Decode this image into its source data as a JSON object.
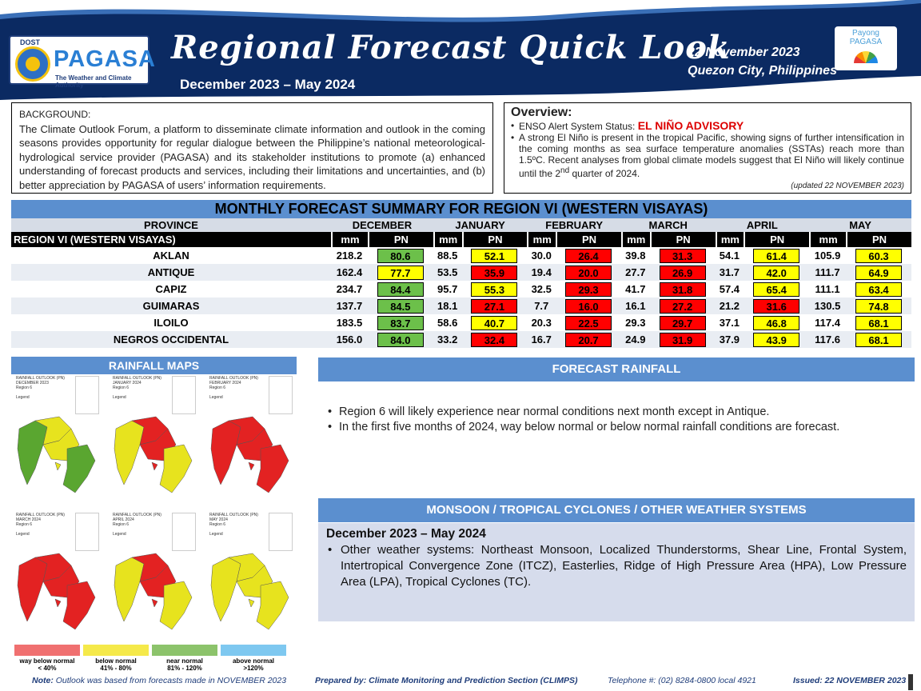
{
  "header": {
    "agency_dost": "DOST",
    "agency_name": "PAGASA",
    "agency_tagline": "The Weather and Climate Authority",
    "title": "Regional Forecast Quick Look",
    "period": "December 2023 – May  2024",
    "date": "22 November 2023",
    "location": "Quezon City, Philippines",
    "payong_line1": "Payong",
    "payong_line2": "PAGASA"
  },
  "background": {
    "heading": "BACKGROUND:",
    "text": "The Climate Outlook Forum, a platform to disseminate climate information and outlook in the coming seasons provides opportunity for regular dialogue between the Philippine’s national meteorological-hydrological service provider (PAGASA) and its stakeholder institutions to promote (a) enhanced understanding of forecast products and services, including their limitations and uncertainties, and (b) better appreciation by PAGASA of users’ information requirements."
  },
  "overview": {
    "heading": "Overview:",
    "enso_label": "ENSO Alert  System Status: ",
    "enso_status": "EL NIÑO ADVISORY",
    "text_before_sup": "A strong El Niño is present in the tropical Pacific, showing signs of further intensification in the coming months as sea surface temperature anomalies (SSTAs) reach more than 1.5ºC. Recent analyses from global climate models suggest that El Niño will likely continue  until the 2",
    "sup": "nd",
    "text_after_sup": " quarter of 2024.",
    "updated": "(updated 22 NOVEMBER  2023)"
  },
  "table": {
    "title": "MONTHLY FORECAST SUMMARY FOR REGION VI (WESTERN VISAYAS)",
    "province_header": "PROVINCE",
    "region_label": "REGION VI (WESTERN VISAYAS)",
    "months": [
      "DECEMBER",
      "JANUARY",
      "FEBRUARY",
      "MARCH",
      "APRIL",
      "MAY"
    ],
    "mm_label": "mm",
    "pn_label": "PN",
    "rows": [
      {
        "province": "AKLAN",
        "mm": [
          "218.2",
          "88.5",
          "30.0",
          "39.8",
          "54.1",
          "105.9"
        ],
        "pn": [
          "80.6",
          "52.1",
          "26.4",
          "31.3",
          "61.4",
          "60.3"
        ],
        "cls": [
          "g",
          "y",
          "r",
          "r",
          "y",
          "y"
        ]
      },
      {
        "province": "ANTIQUE",
        "mm": [
          "162.4",
          "53.5",
          "19.4",
          "27.7",
          "31.7",
          "111.7"
        ],
        "pn": [
          "77.7",
          "35.9",
          "20.0",
          "26.9",
          "42.0",
          "64.9"
        ],
        "cls": [
          "y",
          "r",
          "r",
          "r",
          "y",
          "y"
        ]
      },
      {
        "province": "CAPIZ",
        "mm": [
          "234.7",
          "95.7",
          "32.5",
          "41.7",
          "57.4",
          "111.1"
        ],
        "pn": [
          "84.4",
          "55.3",
          "29.3",
          "31.8",
          "65.4",
          "63.4"
        ],
        "cls": [
          "g",
          "y",
          "r",
          "r",
          "y",
          "y"
        ]
      },
      {
        "province": "GUIMARAS",
        "mm": [
          "137.7",
          "18.1",
          "7.7",
          "16.1",
          "21.2",
          "130.5"
        ],
        "pn": [
          "84.5",
          "27.1",
          "16.0",
          "27.2",
          "31.6",
          "74.8"
        ],
        "cls": [
          "g",
          "r",
          "r",
          "r",
          "r",
          "y"
        ]
      },
      {
        "province": "ILOILO",
        "mm": [
          "183.5",
          "58.6",
          "20.3",
          "29.3",
          "37.1",
          "117.4"
        ],
        "pn": [
          "83.7",
          "40.7",
          "22.5",
          "29.7",
          "46.8",
          "68.1"
        ],
        "cls": [
          "g",
          "y",
          "r",
          "r",
          "y",
          "y"
        ]
      },
      {
        "province": "NEGROS OCCIDENTAL",
        "mm": [
          "156.0",
          "33.2",
          "16.7",
          "24.9",
          "37.9",
          "117.6"
        ],
        "pn": [
          "84.0",
          "32.4",
          "20.7",
          "31.9",
          "43.9",
          "68.1"
        ],
        "cls": [
          "g",
          "r",
          "r",
          "r",
          "y",
          "y"
        ]
      }
    ]
  },
  "rainfall_maps": {
    "heading": "RAINFALL MAPS",
    "maps": [
      {
        "title": "RAINFALL OUTLOOK (PN)",
        "month": "DECEMBER 2023",
        "region": "Region 6",
        "legend": "Legend"
      },
      {
        "title": "RAINFALL OUTLOOK (PN)",
        "month": "JANUARY 2024",
        "region": "Region 6",
        "legend": "Legend"
      },
      {
        "title": "RAINFALL OUTLOOK (PN)",
        "month": "FEBRUARY 2024",
        "region": "Region 6",
        "legend": "Legend"
      },
      {
        "title": "RAINFALL OUTLOOK (PN)",
        "month": "MARCH 2024",
        "region": "Region 6",
        "legend": "Legend"
      },
      {
        "title": "RAINFALL OUTLOOK (PN)",
        "month": "APRIL 2024",
        "region": "Region 6",
        "legend": "Legend"
      },
      {
        "title": "RAINFALL OUTLOOK (PN)",
        "month": "MAY 2024",
        "region": "Region 6",
        "legend": "Legend"
      }
    ],
    "legend": [
      {
        "name": "way below normal",
        "range": "< 40%",
        "color": "#f07070"
      },
      {
        "name": "below normal",
        "range": "41%  -  80%",
        "color": "#f5e94a"
      },
      {
        "name": "near normal",
        "range": "81% - 120%",
        "color": "#8cc36b"
      },
      {
        "name": "above normal",
        "range": ">120%",
        "color": "#7ec8f0"
      }
    ]
  },
  "forecast_rainfall": {
    "heading": "FORECAST RAINFALL",
    "bullets": [
      "Region 6 will likely experience near normal conditions next month except in Antique.",
      "In the first five months of 2024, way below normal or below normal rainfall conditions are forecast."
    ]
  },
  "monsoon": {
    "heading": "MONSOON  / TROPICAL CYCLONES / OTHER WEATHER SYSTEMS",
    "period": "December 2023  – May  2024",
    "text": "Other weather systems: Northeast Monsoon, Localized Thunderstorms, Shear Line, Frontal System, Intertropical Convergence Zone (ITCZ), Easterlies, Ridge of High Pressure Area (HPA), Low Pressure Area (LPA), Tropical Cyclones (TC)."
  },
  "footer": {
    "note_label": "Note:",
    "note": " Outlook was based from forecasts made in NOVEMBER  2023",
    "prepared": "Prepared by: Climate Monitoring and Prediction Section (CLIMPS)",
    "telephone": "Telephone #: (02) 8284-0800 local 4921",
    "issued": "Issued: 22 NOVEMBER 2023"
  },
  "colors": {
    "header_bg": "#0b2a62",
    "section_blue": "#5b8fcf",
    "near_normal": "#6cc04a",
    "below_normal": "#ffff00",
    "way_below": "#ff0000",
    "map_green": "#5aa630",
    "map_yellow": "#e7e31e",
    "map_red": "#e32222"
  }
}
